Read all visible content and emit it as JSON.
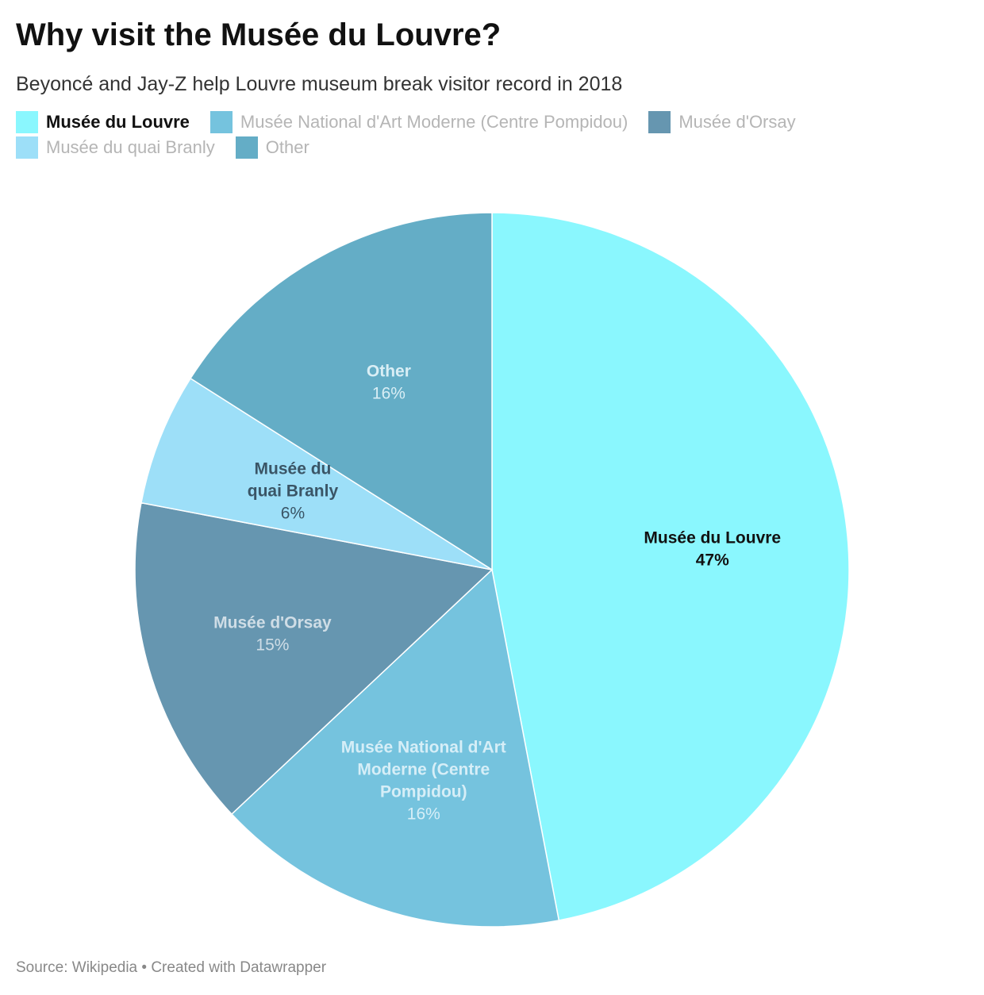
{
  "title": "Why visit the Musée du Louvre?",
  "subtitle": "Beyoncé and Jay-Z help Louvre museum break visitor record in 2018",
  "source": "Source: Wikipedia • Created with Datawrapper",
  "chart_data": {
    "type": "pie",
    "title": "Why visit the Musée du Louvre?",
    "subtitle": "Beyoncé and Jay-Z help Louvre museum break visitor record in 2018",
    "legend_position": "top-left",
    "slices": [
      {
        "name": "Musée du Louvre",
        "label_lines": [
          "Musée du Louvre"
        ],
        "value": 47,
        "value_label": "47%",
        "color": "#8af7fe",
        "label_color": "#111111",
        "highlight": true
      },
      {
        "name": "Musée National d'Art Moderne (Centre Pompidou)",
        "label_lines": [
          "Musée National d'Art",
          "Moderne (Centre",
          "Pompidou)"
        ],
        "value": 16,
        "value_label": "16%",
        "color": "#75c3de",
        "label_color": "#d6eef7",
        "highlight": false
      },
      {
        "name": "Musée d'Orsay",
        "label_lines": [
          "Musée d'Orsay"
        ],
        "value": 15,
        "value_label": "15%",
        "color": "#6696b0",
        "label_color": "#cfdde6",
        "highlight": false
      },
      {
        "name": "Musée du quai Branly",
        "label_lines": [
          "Musée du",
          "quai Branly"
        ],
        "value": 6,
        "value_label": "6%",
        "color": "#9ddff8",
        "label_color": "#3a5566",
        "highlight": false
      },
      {
        "name": "Other",
        "label_lines": [
          "Other"
        ],
        "value": 16,
        "value_label": "16%",
        "color": "#64adc6",
        "label_color": "#d9eef5",
        "highlight": false
      }
    ]
  }
}
